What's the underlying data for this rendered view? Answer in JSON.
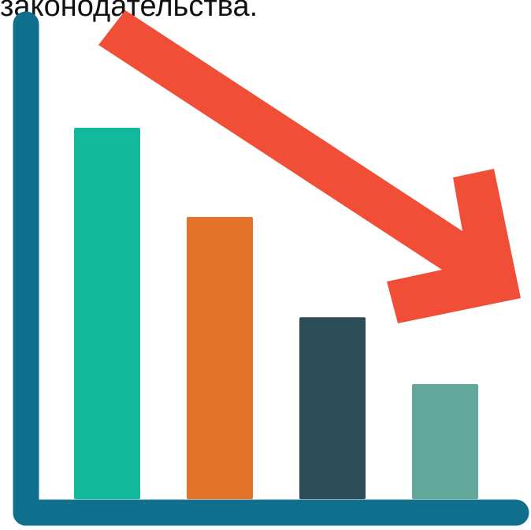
{
  "caption": "законодательства.",
  "chart_data": {
    "type": "bar",
    "title": "",
    "xlabel": "",
    "ylabel": "",
    "categories": [
      "",
      "",
      "",
      ""
    ],
    "values": [
      100,
      76,
      49,
      31
    ],
    "ylim": [
      0,
      100
    ],
    "trend": "decreasing",
    "colors": [
      "#12b89b",
      "#e4732a",
      "#2c4d57",
      "#61a89b"
    ],
    "axis_color": "#0f6f8d",
    "arrow_color": "#f04e36"
  }
}
